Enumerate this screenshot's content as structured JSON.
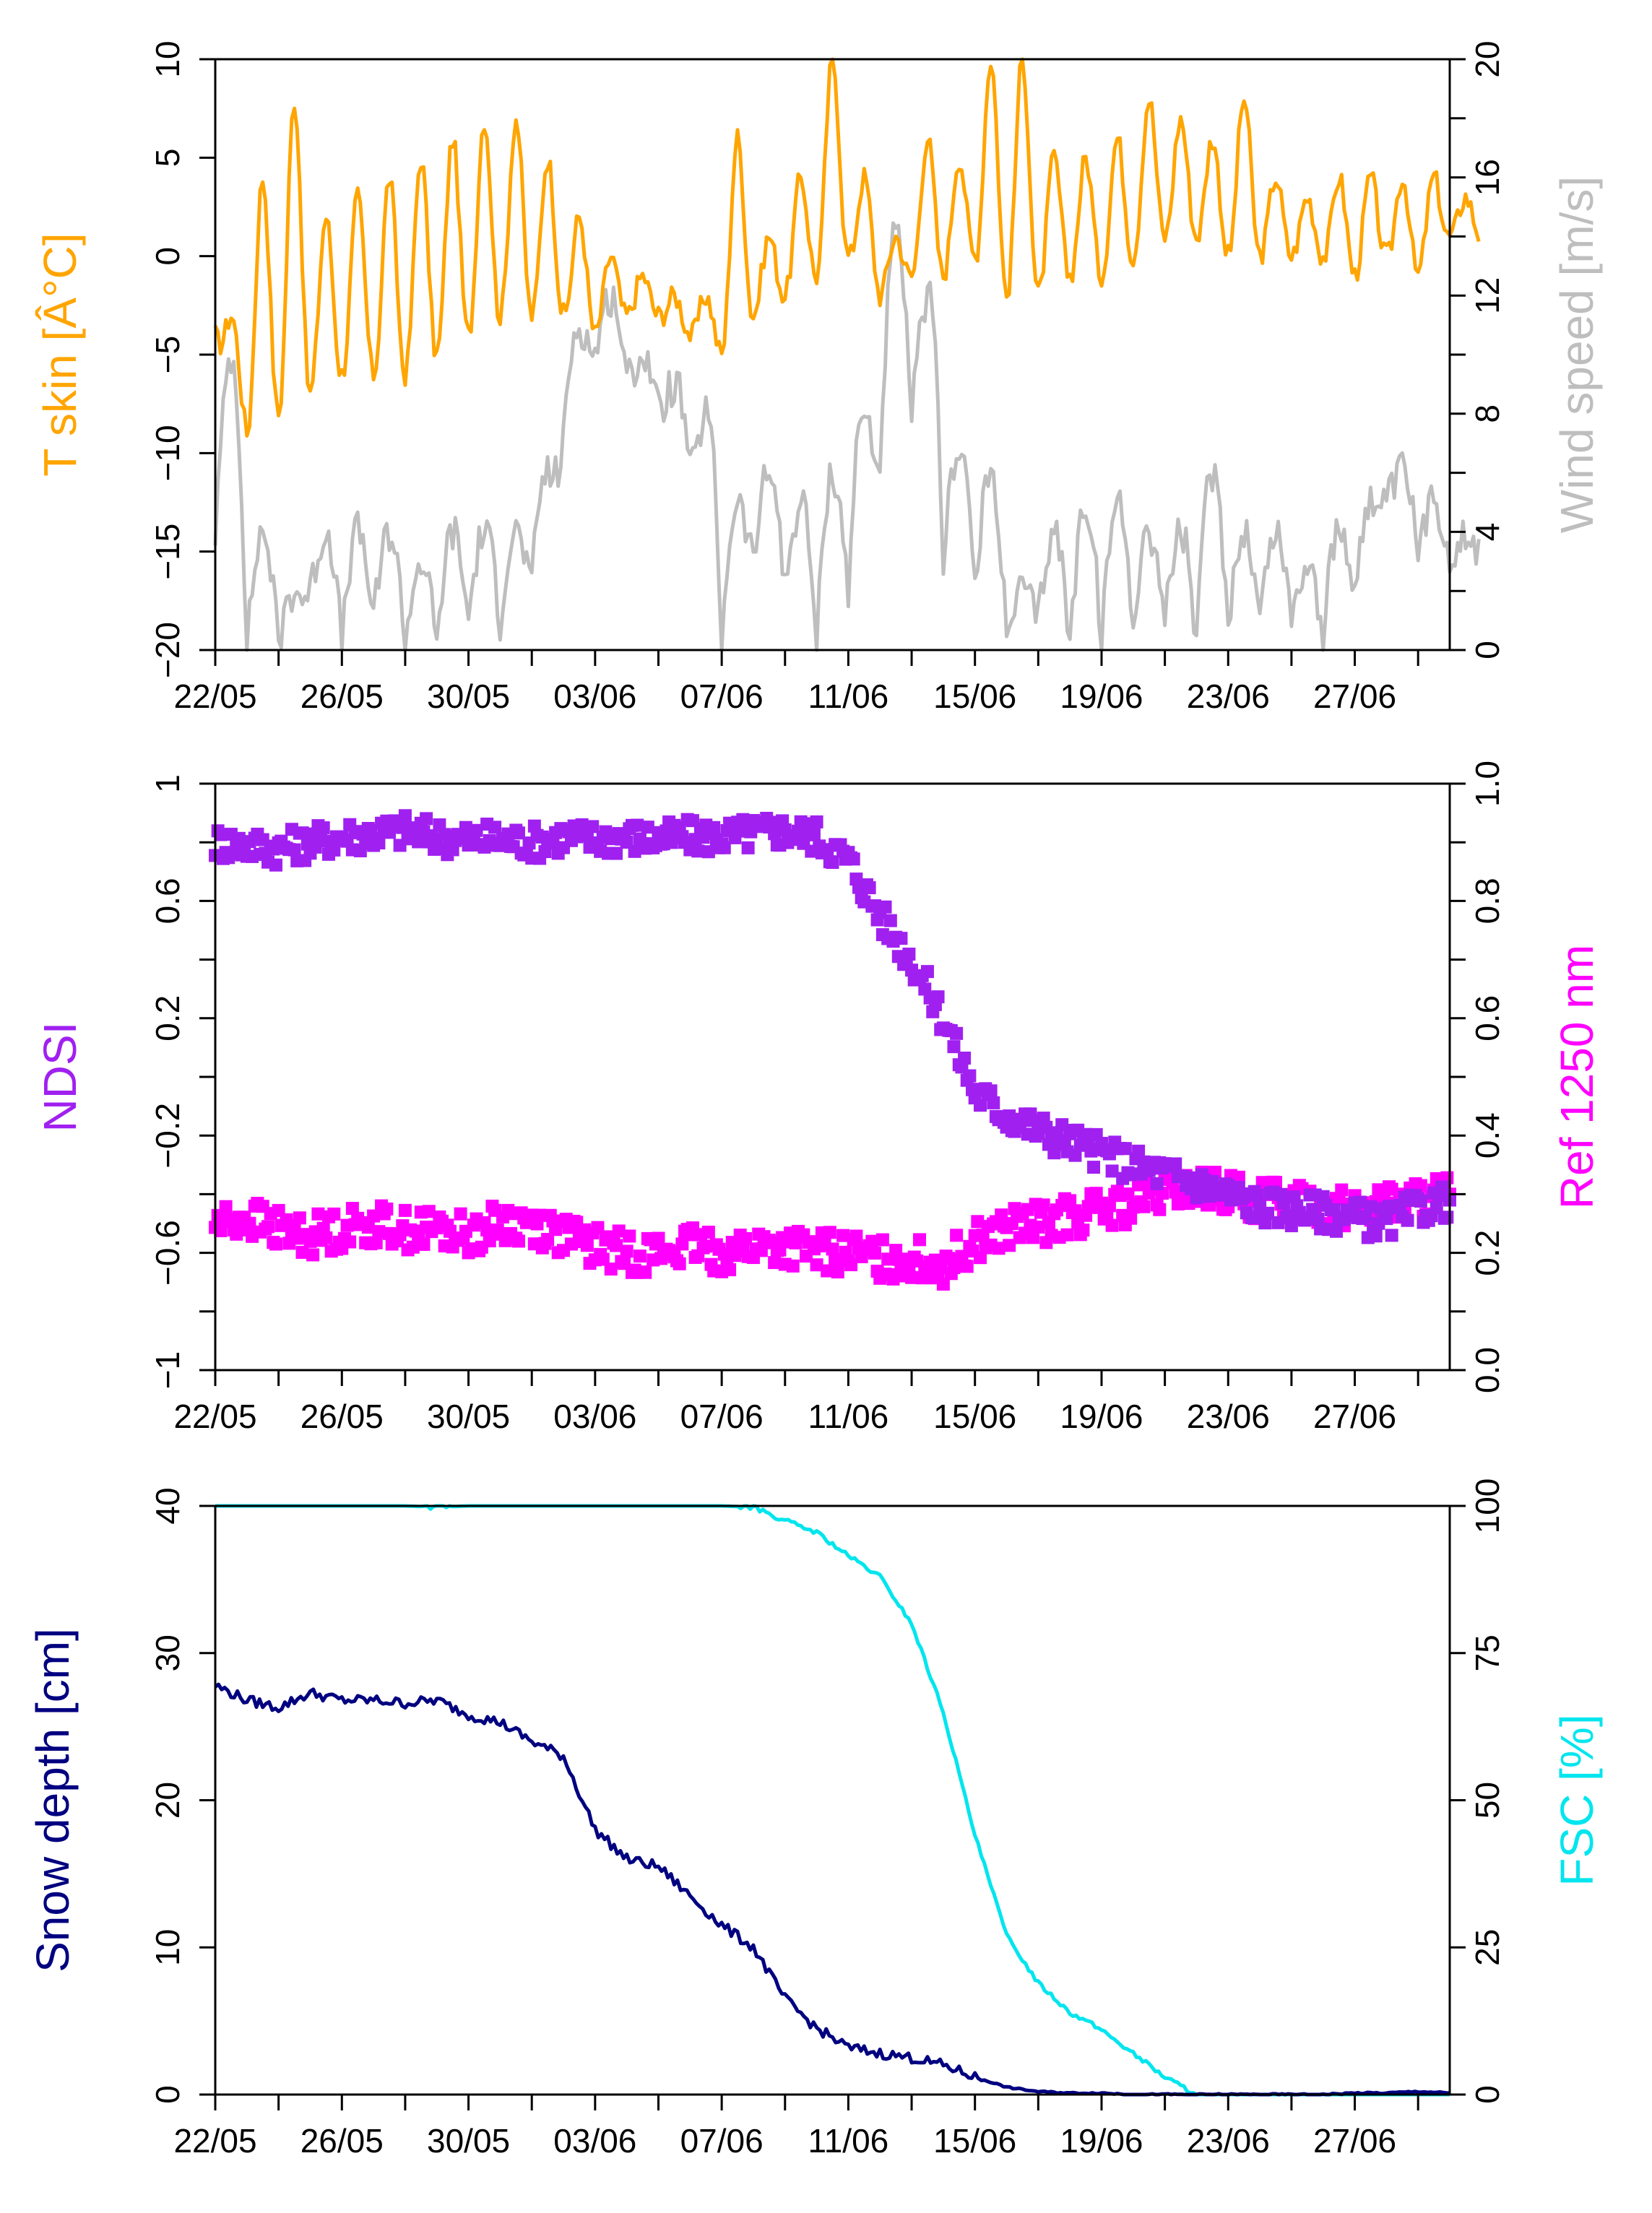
{
  "chart_data": [
    {
      "type": "line",
      "x_ticks": [
        "22/05",
        "26/05",
        "30/05",
        "03/06",
        "07/06",
        "11/06",
        "15/06",
        "19/06",
        "23/06",
        "27/06"
      ],
      "x_range": [
        "22/05",
        "30/06"
      ],
      "ylabel": "T skin [Â°C]",
      "y2label": "Wind speed [m/s]",
      "ylim": [
        -20,
        10
      ],
      "y2lim": [
        0,
        20
      ],
      "y_ticks": [
        "-20",
        "-15",
        "-10",
        "-5",
        "0",
        "5",
        "10"
      ],
      "y2_ticks": [
        "0",
        "4",
        "8",
        "12",
        "16",
        "20"
      ],
      "colors": {
        "left": "#FFA500",
        "right": "#BEBEBE"
      },
      "series": [
        {
          "axis": "left",
          "x": [
            "22/05",
            "23/05",
            "24/05",
            "25/05",
            "26/05",
            "27/05",
            "28/05",
            "29/05",
            "30/05",
            "31/05",
            "01/06",
            "02/06",
            "03/06",
            "04/06",
            "05/06",
            "06/06",
            "07/06",
            "08/06",
            "09/06",
            "10/06",
            "11/06",
            "12/06",
            "13/06",
            "14/06",
            "15/06",
            "16/06",
            "17/06",
            "18/06",
            "19/06",
            "20/06",
            "21/06",
            "22/06",
            "23/06",
            "24/06",
            "25/06",
            "26/06",
            "27/06",
            "28/06",
            "29/06",
            "30/06"
          ],
          "min": [
            -4,
            -9,
            -8,
            -7,
            -6,
            -6,
            -6,
            -5,
            -4,
            -3,
            -3,
            -3,
            -4,
            -3,
            -3,
            -4,
            -5,
            -3,
            -2,
            -1,
            0,
            -2,
            -1,
            -1,
            0,
            -2,
            -2,
            -1,
            -1,
            0,
            1,
            1,
            0,
            0,
            0,
            0,
            -1,
            0,
            -1,
            1
          ],
          "max": [
            -3,
            4,
            8,
            2,
            3,
            4,
            5,
            6,
            7,
            7,
            5,
            2,
            0,
            -1,
            -2,
            -2,
            6,
            1,
            4,
            10,
            4,
            1,
            6,
            5,
            10,
            10,
            5,
            5,
            6,
            8,
            7,
            6,
            8,
            4,
            3,
            4,
            4,
            4,
            4,
            3
          ]
        },
        {
          "axis": "right",
          "x": [
            "22/05",
            "23/05",
            "24/05",
            "25/05",
            "26/05",
            "27/05",
            "28/05",
            "29/05",
            "30/05",
            "31/05",
            "01/06",
            "02/06",
            "03/06",
            "04/06",
            "05/06",
            "06/06",
            "07/06",
            "08/06",
            "09/06",
            "10/06",
            "11/06",
            "12/06",
            "13/06",
            "14/06",
            "15/06",
            "16/06",
            "17/06",
            "18/06",
            "19/06",
            "20/06",
            "21/06",
            "22/06",
            "23/06",
            "24/06",
            "25/06",
            "26/06",
            "27/06",
            "28/06",
            "29/06",
            "30/06"
          ],
          "min": [
            4,
            0,
            0,
            2,
            0,
            1,
            0,
            0,
            1,
            1,
            2,
            7,
            10,
            9,
            8,
            6,
            0,
            3,
            2,
            0,
            2,
            6,
            8,
            3,
            2,
            0,
            1,
            0,
            0,
            1,
            1,
            0,
            1,
            1,
            1,
            0,
            2,
            5,
            3,
            3
          ],
          "max": [
            10,
            4,
            2,
            4,
            4,
            4,
            3,
            4,
            4,
            4,
            6,
            11,
            12,
            10,
            9,
            8,
            5,
            6,
            5,
            6,
            8,
            14,
            12,
            7,
            6,
            2,
            4,
            5,
            5,
            4,
            4,
            6,
            4,
            4,
            3,
            4,
            5,
            6,
            5,
            4
          ]
        }
      ]
    },
    {
      "type": "scatter",
      "x_ticks": [
        "22/05",
        "26/05",
        "30/05",
        "03/06",
        "07/06",
        "11/06",
        "15/06",
        "19/06",
        "23/06",
        "27/06"
      ],
      "x_range": [
        "22/05",
        "30/06"
      ],
      "ylabel": "NDSI",
      "y2label": "Ref 1250 nm",
      "ylim": [
        -1,
        1
      ],
      "y2lim": [
        0.0,
        1.0
      ],
      "y_ticks": [
        "-1",
        "-0.6",
        "-0.2",
        "0.2",
        "0.6",
        "1"
      ],
      "y2_ticks": [
        "0.0",
        "0.2",
        "0.4",
        "0.6",
        "0.8",
        "1.0"
      ],
      "colors": {
        "left": "#A020F0",
        "right": "#FF00FF"
      },
      "series": [
        {
          "axis": "left",
          "x": [
            "22/05",
            "23/05",
            "24/05",
            "25/05",
            "26/05",
            "27/05",
            "28/05",
            "29/05",
            "30/05",
            "31/05",
            "01/06",
            "02/06",
            "03/06",
            "04/06",
            "05/06",
            "06/06",
            "07/06",
            "08/06",
            "09/06",
            "10/06",
            "11/06",
            "12/06",
            "13/06",
            "14/06",
            "15/06",
            "16/06",
            "17/06",
            "18/06",
            "19/06",
            "20/06",
            "21/06",
            "22/06",
            "23/06",
            "24/06",
            "25/06",
            "26/06",
            "27/06",
            "28/06",
            "29/06",
            "30/06"
          ],
          "y": [
            0.8,
            0.79,
            0.78,
            0.8,
            0.82,
            0.83,
            0.84,
            0.82,
            0.81,
            0.81,
            0.8,
            0.82,
            0.81,
            0.82,
            0.81,
            0.82,
            0.82,
            0.83,
            0.84,
            0.82,
            0.74,
            0.55,
            0.4,
            0.2,
            -0.05,
            -0.13,
            -0.18,
            -0.22,
            -0.26,
            -0.3,
            -0.33,
            -0.36,
            -0.4,
            -0.44,
            -0.45,
            -0.46,
            -0.48,
            -0.5,
            -0.45,
            -0.42
          ]
        },
        {
          "axis": "right",
          "x": [
            "22/05",
            "23/05",
            "24/05",
            "25/05",
            "26/05",
            "27/05",
            "28/05",
            "29/05",
            "30/05",
            "31/05",
            "01/06",
            "02/06",
            "03/06",
            "04/06",
            "05/06",
            "06/06",
            "07/06",
            "08/06",
            "09/06",
            "10/06",
            "11/06",
            "12/06",
            "13/06",
            "14/06",
            "15/06",
            "16/06",
            "17/06",
            "18/06",
            "19/06",
            "20/06",
            "21/06",
            "22/06",
            "23/06",
            "24/06",
            "25/06",
            "26/06",
            "27/06",
            "28/06",
            "29/06",
            "30/06"
          ],
          "y": [
            0.25,
            0.26,
            0.24,
            0.23,
            0.24,
            0.25,
            0.24,
            0.24,
            0.23,
            0.25,
            0.25,
            0.23,
            0.21,
            0.2,
            0.2,
            0.21,
            0.2,
            0.21,
            0.21,
            0.2,
            0.2,
            0.19,
            0.19,
            0.18,
            0.22,
            0.24,
            0.25,
            0.26,
            0.27,
            0.28,
            0.3,
            0.31,
            0.3,
            0.29,
            0.29,
            0.28,
            0.28,
            0.28,
            0.29,
            0.3
          ]
        }
      ]
    },
    {
      "type": "line",
      "x_ticks": [
        "22/05",
        "26/05",
        "30/05",
        "03/06",
        "07/06",
        "11/06",
        "15/06",
        "19/06",
        "23/06",
        "27/06"
      ],
      "x_range": [
        "22/05",
        "30/06"
      ],
      "ylabel": "Snow depth [cm]",
      "y2label": "FSC [%]",
      "ylim": [
        0,
        40
      ],
      "y2lim": [
        0,
        100
      ],
      "y_ticks": [
        "0",
        "10",
        "20",
        "30",
        "40"
      ],
      "y2_ticks": [
        "0",
        "25",
        "50",
        "75",
        "100"
      ],
      "colors": {
        "left": "#000080",
        "right": "#00E5EE"
      },
      "series": [
        {
          "axis": "left",
          "x": [
            "22/05",
            "23/05",
            "24/05",
            "25/05",
            "26/05",
            "27/05",
            "28/05",
            "29/05",
            "30/05",
            "31/05",
            "01/06",
            "02/06",
            "03/06",
            "04/06",
            "05/06",
            "06/06",
            "07/06",
            "08/06",
            "09/06",
            "10/06",
            "11/06",
            "12/06",
            "13/06",
            "14/06",
            "15/06",
            "16/06",
            "17/06",
            "18/06",
            "19/06",
            "20/06",
            "21/06",
            "22/06",
            "23/06",
            "24/06",
            "25/06",
            "26/06",
            "27/06",
            "28/06",
            "29/06",
            "30/06"
          ],
          "y": [
            27.8,
            26.8,
            26.3,
            27.3,
            26.8,
            26.8,
            26.6,
            26.8,
            25.8,
            25.3,
            24.0,
            23.0,
            18.0,
            16.0,
            15.5,
            13.5,
            11.5,
            10.0,
            6.5,
            4.5,
            3.2,
            2.8,
            2.5,
            2.0,
            1.2,
            0.5,
            0.2,
            0.1,
            0.1,
            0.0,
            0.0,
            0.0,
            0.0,
            0.0,
            0.0,
            0.0,
            0.1,
            0.1,
            0.2,
            0.1
          ]
        },
        {
          "axis": "right",
          "x": [
            "22/05",
            "23/05",
            "24/05",
            "25/05",
            "26/05",
            "27/05",
            "28/05",
            "29/05",
            "30/05",
            "31/05",
            "01/06",
            "02/06",
            "03/06",
            "04/06",
            "05/06",
            "06/06",
            "07/06",
            "08/06",
            "09/06",
            "10/06",
            "11/06",
            "12/06",
            "13/06",
            "14/06",
            "15/06",
            "16/06",
            "17/06",
            "18/06",
            "19/06",
            "20/06",
            "21/06",
            "22/06",
            "23/06",
            "24/06",
            "25/06",
            "26/06",
            "27/06",
            "28/06",
            "29/06",
            "30/06"
          ],
          "y": [
            100,
            100,
            100,
            100,
            100,
            100,
            100,
            99.8,
            100,
            100,
            100,
            100,
            100,
            100,
            100,
            100,
            100,
            99.8,
            97.5,
            95.5,
            91.5,
            88.0,
            80.0,
            65.0,
            44.0,
            27.0,
            19.0,
            14.0,
            11.0,
            7.0,
            3.0,
            0.0,
            0.0,
            0.0,
            0.0,
            0.0,
            0.0,
            0.0,
            0.0,
            0.0
          ]
        }
      ]
    }
  ]
}
